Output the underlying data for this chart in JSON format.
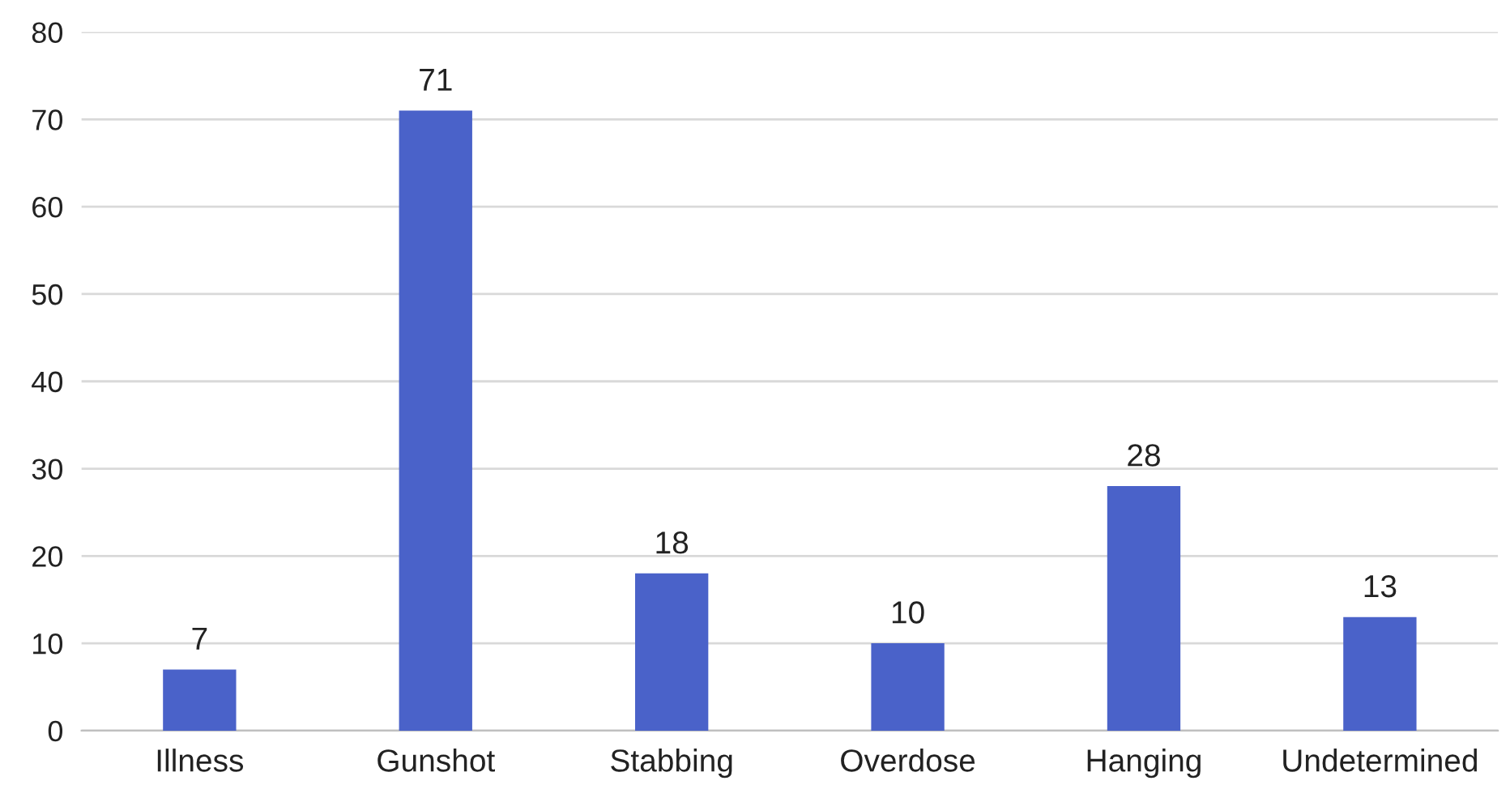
{
  "chart_data": {
    "type": "bar",
    "categories": [
      "Illness",
      "Gunshot",
      "Stabbing",
      "Overdose",
      "Hanging",
      "Undetermined"
    ],
    "values": [
      7,
      71,
      18,
      10,
      28,
      13
    ],
    "color": "#4a62c9",
    "ylim": [
      0,
      80
    ],
    "yticks": [
      0,
      10,
      20,
      30,
      40,
      50,
      60,
      70,
      80
    ],
    "grid": "y",
    "data_labels": true
  }
}
